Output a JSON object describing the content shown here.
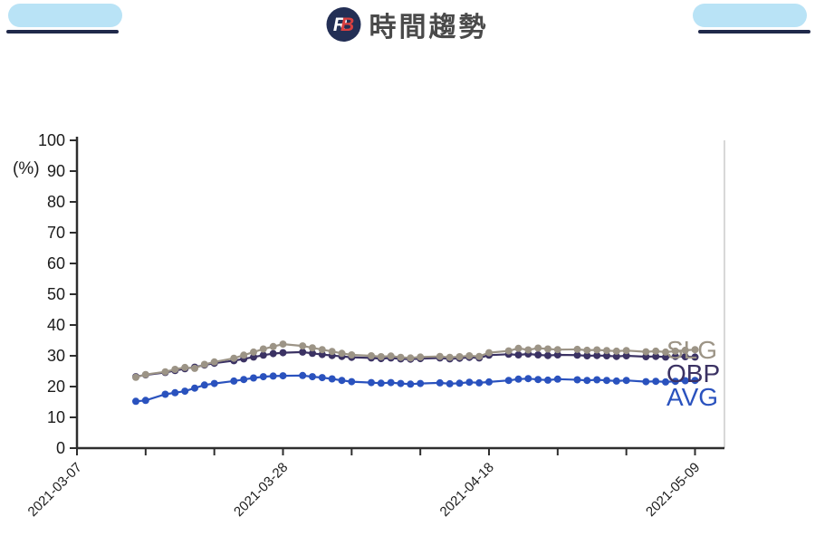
{
  "header": {
    "title": "時間趨勢",
    "logo": {
      "r": "R",
      "b": "B"
    }
  },
  "chart_data": {
    "type": "line",
    "title": "時間趨勢",
    "ylabel": "(%)",
    "ylim": [
      0,
      100
    ],
    "y_ticks": [
      0,
      10,
      20,
      30,
      40,
      50,
      60,
      70,
      80,
      90,
      100
    ],
    "grid": false,
    "legend_position": "right-of-line-ends",
    "x_start_date": "2021-03-07",
    "x_tick_interval_days": 7,
    "x_total_days": 66,
    "x_labels": [
      {
        "label": "2021-03-07",
        "day": 0
      },
      {
        "label": "2021-03-28",
        "day": 21
      },
      {
        "label": "2021-04-18",
        "day": 42
      },
      {
        "label": "2021-05-09",
        "day": 63
      }
    ],
    "dates": [
      "03-13",
      "03-14",
      "03-16",
      "03-17",
      "03-18",
      "03-19",
      "03-20",
      "03-21",
      "03-23",
      "03-24",
      "03-25",
      "03-26",
      "03-27",
      "03-28",
      "03-30",
      "03-31",
      "04-01",
      "04-02",
      "04-03",
      "04-04",
      "04-06",
      "04-07",
      "04-08",
      "04-09",
      "04-10",
      "04-11",
      "04-13",
      "04-14",
      "04-15",
      "04-16",
      "04-17",
      "04-18",
      "04-20",
      "04-21",
      "04-22",
      "04-23",
      "04-24",
      "04-25",
      "04-27",
      "04-28",
      "04-29",
      "04-30",
      "05-01",
      "05-02",
      "05-04",
      "05-05",
      "05-06",
      "05-07",
      "05-08",
      "05-09"
    ],
    "series": [
      {
        "name": "SLG",
        "color": "#9c9486",
        "values": [
          23.0,
          23.9,
          24.8,
          25.6,
          26.2,
          25.9,
          27.2,
          28.0,
          29.2,
          30.2,
          31.2,
          32.2,
          33.0,
          33.8,
          33.2,
          32.6,
          32.0,
          31.4,
          30.8,
          30.3,
          30.0,
          29.7,
          29.9,
          29.5,
          29.3,
          29.6,
          29.8,
          29.5,
          29.7,
          30.0,
          29.8,
          31.0,
          31.6,
          32.4,
          31.9,
          32.5,
          32.2,
          32.0,
          32.1,
          31.8,
          31.9,
          31.7,
          31.5,
          31.7,
          31.3,
          31.5,
          31.2,
          31.5,
          31.8,
          32.0
        ]
      },
      {
        "name": "OBP",
        "color": "#3b3263",
        "values": [
          23.2,
          23.8,
          24.6,
          25.2,
          25.8,
          26.3,
          27.0,
          27.6,
          28.4,
          29.0,
          29.6,
          30.2,
          30.7,
          31.0,
          31.2,
          30.8,
          30.4,
          30.1,
          29.8,
          29.5,
          29.3,
          29.1,
          29.3,
          29.0,
          28.9,
          29.1,
          29.3,
          29.0,
          29.2,
          29.5,
          29.3,
          30.2,
          30.5,
          30.3,
          30.6,
          30.3,
          30.1,
          30.3,
          30.2,
          30.0,
          30.1,
          30.0,
          29.8,
          30.0,
          29.7,
          29.8,
          29.6,
          29.8,
          29.7,
          29.6
        ]
      },
      {
        "name": "AVG",
        "color": "#2a52be",
        "values": [
          15.2,
          15.5,
          17.5,
          18.0,
          18.5,
          19.5,
          20.5,
          21.0,
          21.8,
          22.3,
          22.8,
          23.2,
          23.4,
          23.5,
          23.6,
          23.2,
          22.9,
          22.5,
          22.0,
          21.6,
          21.3,
          21.1,
          21.3,
          21.0,
          20.8,
          21.0,
          21.2,
          20.9,
          21.1,
          21.4,
          21.2,
          21.5,
          22.0,
          22.4,
          22.6,
          22.3,
          22.1,
          22.4,
          22.2,
          22.0,
          22.2,
          22.0,
          21.8,
          22.0,
          21.6,
          21.7,
          21.5,
          21.7,
          21.9,
          22.0
        ]
      }
    ]
  },
  "colors": {
    "axis": "#2e2e2e",
    "tick_text": "#1c1c1c",
    "plot_right_border": "#cccccc",
    "header_bar": "#b9e3f6",
    "header_underline": "#20294a",
    "logo_circle": "#232f55",
    "logo_r": "#ffffff",
    "logo_b": "#d94040",
    "title_text": "#4a4a4a"
  }
}
